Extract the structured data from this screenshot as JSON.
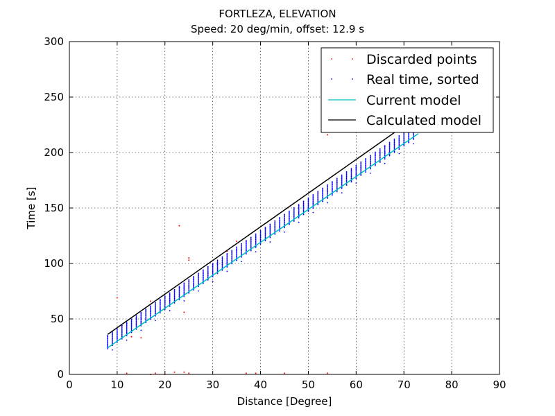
{
  "chart_data": {
    "type": "scatter",
    "title": "FORTLEZA, ELEVATION",
    "subtitle": "Speed: 20 deg/min, offset: 12.9 s",
    "xlabel": "Distance [Degree]",
    "ylabel": "Time [s]",
    "xlim": [
      0,
      90
    ],
    "ylim": [
      0,
      300
    ],
    "xticks": [
      "0",
      "10",
      "20",
      "30",
      "40",
      "50",
      "60",
      "70",
      "80",
      "90"
    ],
    "yticks": [
      "0",
      "50",
      "100",
      "150",
      "200",
      "250",
      "300"
    ],
    "grid": true,
    "legend_position": "top-right",
    "colors": {
      "discarded": "#ff0000",
      "realtime": "#0000ff",
      "current_model": "#00bfbf",
      "calculated_model": "#000000"
    },
    "series": [
      {
        "name": "Discarded points",
        "kind": "points",
        "points": [
          [
            10,
            69
          ],
          [
            12,
            1
          ],
          [
            17,
            0
          ],
          [
            18,
            1
          ],
          [
            20,
            0
          ],
          [
            22,
            2
          ],
          [
            23,
            134
          ],
          [
            24,
            2
          ],
          [
            24,
            56
          ],
          [
            25,
            105
          ],
          [
            25,
            103
          ],
          [
            25,
            1
          ],
          [
            17,
            66
          ],
          [
            13,
            34
          ],
          [
            15,
            33
          ],
          [
            37,
            1
          ],
          [
            39,
            1
          ],
          [
            45,
            1
          ],
          [
            54,
            1
          ],
          [
            54,
            216
          ],
          [
            33,
            111
          ],
          [
            35,
            120
          ]
        ]
      },
      {
        "name": "Real time, sorted",
        "kind": "band",
        "x_range": [
          8,
          72
        ],
        "x_step": 1,
        "band_slope": 2.95,
        "band_intercept": 5.5,
        "band_width": 12
      },
      {
        "name": "Current model",
        "kind": "line",
        "points": [
          [
            8,
            24
          ],
          [
            73,
            217
          ]
        ]
      },
      {
        "name": "Calculated model",
        "kind": "line",
        "points": [
          [
            8,
            36
          ],
          [
            69,
            221
          ]
        ]
      }
    ]
  }
}
